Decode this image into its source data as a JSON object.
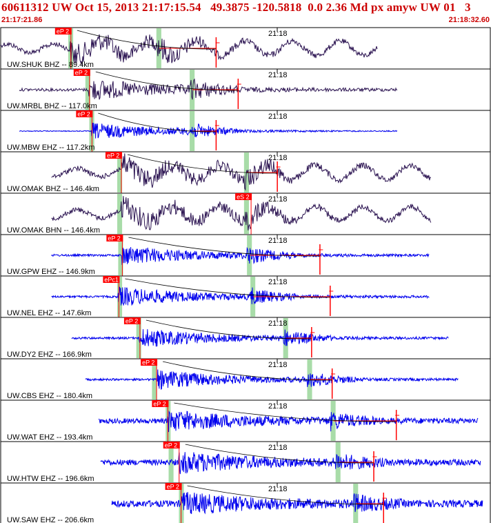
{
  "header": {
    "title": "60611312 UW Oct 15, 2013 21:17:15.54   49.3875 -120.5818  0.0 2.36 Md px amyw UW 01   3",
    "time_start": "21:17:21.86",
    "time_end": "21:18:32.60"
  },
  "colors": {
    "frame": "#000000",
    "trace_bh": "#2a1250",
    "trace_eh": "#0000ee",
    "pick": "#ff0000",
    "window": "#a8dca8",
    "travel_curve": "#000000",
    "title": "#cc0000"
  },
  "chart_data": {
    "type": "line",
    "title": "60611312 UW Oct 15, 2013 21:17:15.54   49.3875 -120.5818  0.0 2.36 Md px amyw UW 01   3",
    "x_start": "21:17:21.86",
    "x_end": "21:18:32.60",
    "tick_label": "21:18",
    "grid": false,
    "travel_curve": true,
    "series": [
      {
        "name": "UW.SHUK BHZ -- 89.4km",
        "kind": "BH",
        "trace_start": 0.0,
        "trace_end": 0.77,
        "first_pick": "eP 2",
        "p_arrival": 0.142,
        "window_start": 0.138,
        "window_end": 0.148,
        "s_window_start": 0.318,
        "s_window_end": 0.328,
        "coda": 0.44,
        "marker": 0.443,
        "amplitude": 0.55,
        "noise": 0.12,
        "style": "wavy"
      },
      {
        "name": "UW.MRBL BHZ -- 117.0km",
        "kind": "BH",
        "trace_start": 0.038,
        "trace_end": 0.81,
        "first_pick": "eP 2",
        "p_arrival": 0.18,
        "window_start": 0.173,
        "window_end": 0.183,
        "s_window_start": 0.386,
        "s_window_end": 0.396,
        "coda": 0.485,
        "marker": 0.487,
        "amplitude": 0.5,
        "noise": 0.07,
        "style": "burst"
      },
      {
        "name": "UW.MBW EHZ -- 117.2km",
        "kind": "EH",
        "trace_start": 0.038,
        "trace_end": 0.81,
        "first_pick": "eP 2",
        "p_arrival": 0.185,
        "window_start": 0.181,
        "window_end": 0.191,
        "s_window_start": 0.386,
        "s_window_end": 0.396,
        "coda": 0.44,
        "marker": 0.442,
        "amplitude": 0.4,
        "noise": 0.02,
        "style": "burst"
      },
      {
        "name": "UW.OMAK BHZ -- 146.4km",
        "kind": "BH",
        "trace_start": 0.104,
        "trace_end": 0.88,
        "first_pick": "eP 2",
        "p_arrival": 0.245,
        "window_start": 0.238,
        "window_end": 0.248,
        "s_window_start": 0.497,
        "s_window_end": 0.507,
        "coda": 0.565,
        "marker": 0.567,
        "amplitude": 0.55,
        "noise": 0.12,
        "style": "wavy"
      },
      {
        "name": "UW.OMAK BHN -- 146.4km",
        "kind": "BH",
        "trace_start": 0.104,
        "trace_end": 0.88,
        "first_pick": "eS 2",
        "p_arrival": 0.245,
        "window_start": 0.238,
        "window_end": 0.248,
        "s_window_start": 0.497,
        "s_window_end": 0.507,
        "coda": null,
        "marker": null,
        "amplitude": 0.55,
        "noise": 0.12,
        "style": "wavy",
        "pick_at": 0.51
      },
      {
        "name": "UW.GPW EHZ -- 146.9km",
        "kind": "EH",
        "trace_start": 0.104,
        "trace_end": 0.875,
        "first_pick": "eP 2",
        "p_arrival": 0.247,
        "window_start": 0.24,
        "window_end": 0.25,
        "s_window_start": 0.503,
        "s_window_end": 0.513,
        "coda": 0.652,
        "marker": 0.654,
        "amplitude": 0.45,
        "noise": 0.05,
        "style": "burst"
      },
      {
        "name": "UW.NEL EHZ -- 147.6km",
        "kind": "EH",
        "trace_start": 0.104,
        "trace_end": 0.875,
        "first_pick": "ePc1",
        "p_arrival": 0.24,
        "window_start": 0.238,
        "window_end": 0.248,
        "s_window_start": 0.51,
        "s_window_end": 0.52,
        "coda": 0.673,
        "marker": 0.675,
        "amplitude": 0.45,
        "noise": 0.05,
        "style": "burst"
      },
      {
        "name": "UW.DY2 EHZ -- 166.9km",
        "kind": "EH",
        "trace_start": 0.145,
        "trace_end": 0.915,
        "first_pick": "eP 2",
        "p_arrival": 0.283,
        "window_start": 0.277,
        "window_end": 0.287,
        "s_window_start": 0.577,
        "s_window_end": 0.587,
        "coda": 0.635,
        "marker": 0.637,
        "amplitude": 0.45,
        "noise": 0.05,
        "style": "burst"
      },
      {
        "name": "UW.CBS EHZ -- 180.4km",
        "kind": "EH",
        "trace_start": 0.173,
        "trace_end": 0.935,
        "first_pick": "eP 2",
        "p_arrival": 0.317,
        "window_start": 0.309,
        "window_end": 0.319,
        "s_window_start": 0.626,
        "s_window_end": 0.636,
        "coda": 0.677,
        "marker": 0.679,
        "amplitude": 0.45,
        "noise": 0.05,
        "style": "burst"
      },
      {
        "name": "UW.WAT EHZ -- 193.4km",
        "kind": "EH",
        "trace_start": 0.2,
        "trace_end": 0.975,
        "first_pick": "eP 2",
        "p_arrival": 0.34,
        "window_start": 0.337,
        "window_end": 0.347,
        "s_window_start": 0.674,
        "s_window_end": 0.684,
        "coda": 0.808,
        "marker": 0.81,
        "amplitude": 0.45,
        "noise": 0.12,
        "style": "burst"
      },
      {
        "name": "UW.HTW EHZ -- 196.6km",
        "kind": "EH",
        "trace_start": 0.204,
        "trace_end": 0.98,
        "first_pick": "eP 2",
        "p_arrival": 0.363,
        "window_start": 0.343,
        "window_end": 0.353,
        "s_window_start": 0.684,
        "s_window_end": 0.694,
        "coda": 0.762,
        "marker": 0.764,
        "amplitude": 0.45,
        "noise": 0.14,
        "style": "burst"
      },
      {
        "name": "UW.SAW EHZ -- 206.6km",
        "kind": "EH",
        "trace_start": 0.226,
        "trace_end": 0.985,
        "first_pick": "eP 2",
        "p_arrival": 0.367,
        "window_start": 0.364,
        "window_end": 0.374,
        "s_window_start": 0.72,
        "s_window_end": 0.73,
        "coda": 0.782,
        "marker": 0.784,
        "amplitude": 0.45,
        "noise": 0.16,
        "style": "burst"
      }
    ]
  }
}
